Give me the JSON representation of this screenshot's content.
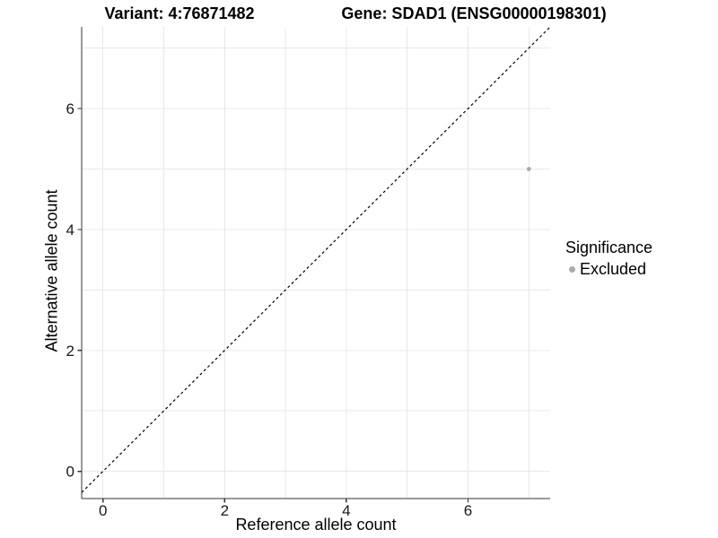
{
  "titles": {
    "left": "Variant: 4:76871482",
    "right": "Gene: SDAD1 (ENSG00000198301)"
  },
  "legend": {
    "title": "Significance",
    "items": [
      {
        "label": "Excluded",
        "color": "#ababab"
      }
    ]
  },
  "chart_data": {
    "type": "scatter",
    "title_left": "Variant: 4:76871482",
    "title_right": "Gene: SDAD1 (ENSG00000198301)",
    "xlabel": "Reference allele count",
    "ylabel": "Alternative allele count",
    "xlim": [
      -0.35,
      7.35
    ],
    "ylim": [
      -0.45,
      7.35
    ],
    "x_ticks": [
      0,
      2,
      4,
      6
    ],
    "y_ticks": [
      0,
      2,
      4,
      6
    ],
    "grid": "on",
    "grid_every": 1,
    "grid_color": "#e8e8e8",
    "axis_color": "#333333",
    "tick_label_color": "#1a1a1a",
    "legend_position": "right",
    "series": [
      {
        "name": "Excluded",
        "color": "#ababab",
        "points": [
          [
            7,
            5
          ]
        ]
      }
    ],
    "reference_line": {
      "equation": "y = x",
      "style": "dashed",
      "color": "#000000"
    }
  }
}
